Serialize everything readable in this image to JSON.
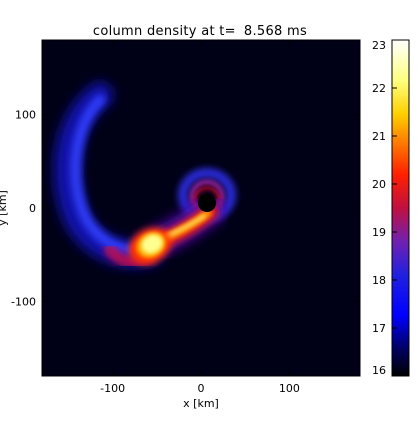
{
  "chart_data": {
    "type": "heatmap",
    "title": "column density at t=",
    "time_value": "8.568",
    "time_unit": "ms",
    "xlabel": "x [km]",
    "ylabel": "y [km]",
    "xlim": [
      -180,
      180
    ],
    "ylim": [
      -180,
      180
    ],
    "x_ticks": [
      -100,
      0,
      100
    ],
    "y_ticks": [
      100,
      0,
      -100
    ],
    "colorbar": {
      "min": 16,
      "max": 23,
      "ticks": [
        23,
        22,
        21,
        20,
        19,
        18,
        17,
        16
      ],
      "colormap": [
        "#000000",
        "#1010ff",
        "#8020b0",
        "#e01020",
        "#ff6000",
        "#ffd000",
        "#ffffa0",
        "#ffffff"
      ]
    },
    "features": [
      {
        "name": "tidal tail",
        "color": "#2a35ff"
      },
      {
        "name": "disk ring",
        "color": "#4040e0"
      },
      {
        "name": "central black hole",
        "color": "#000000"
      },
      {
        "name": "stellar core",
        "color": "#ffff90"
      }
    ]
  }
}
